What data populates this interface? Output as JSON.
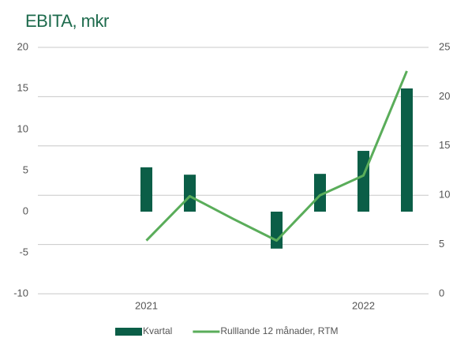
{
  "chart_data": {
    "type": "bar-line",
    "title": "EBITA, mkr",
    "categories": [
      null,
      null,
      "2021",
      null,
      null,
      null,
      null,
      "2022",
      null
    ],
    "series": [
      {
        "name": "Kvartal",
        "type": "bar",
        "color": "#0b5e47",
        "values": [
          null,
          null,
          5.4,
          4.5,
          null,
          -4.5,
          4.6,
          7.4,
          15.0
        ]
      },
      {
        "name": "Rulllande 12 månader, RTM",
        "type": "line",
        "axis": "y2",
        "color": "#5aad5a",
        "values": [
          null,
          null,
          5.4,
          9.9,
          7.6,
          5.4,
          10.0,
          12.0,
          22.6
        ]
      }
    ],
    "ylim": [
      -10,
      20
    ],
    "yticks": [
      -10,
      -5,
      0,
      5,
      10,
      15,
      20
    ],
    "y2lim": [
      0,
      25
    ],
    "y2ticks": [
      0,
      5,
      10,
      15,
      20,
      25
    ],
    "grid": "y2",
    "legend": "bottom"
  }
}
